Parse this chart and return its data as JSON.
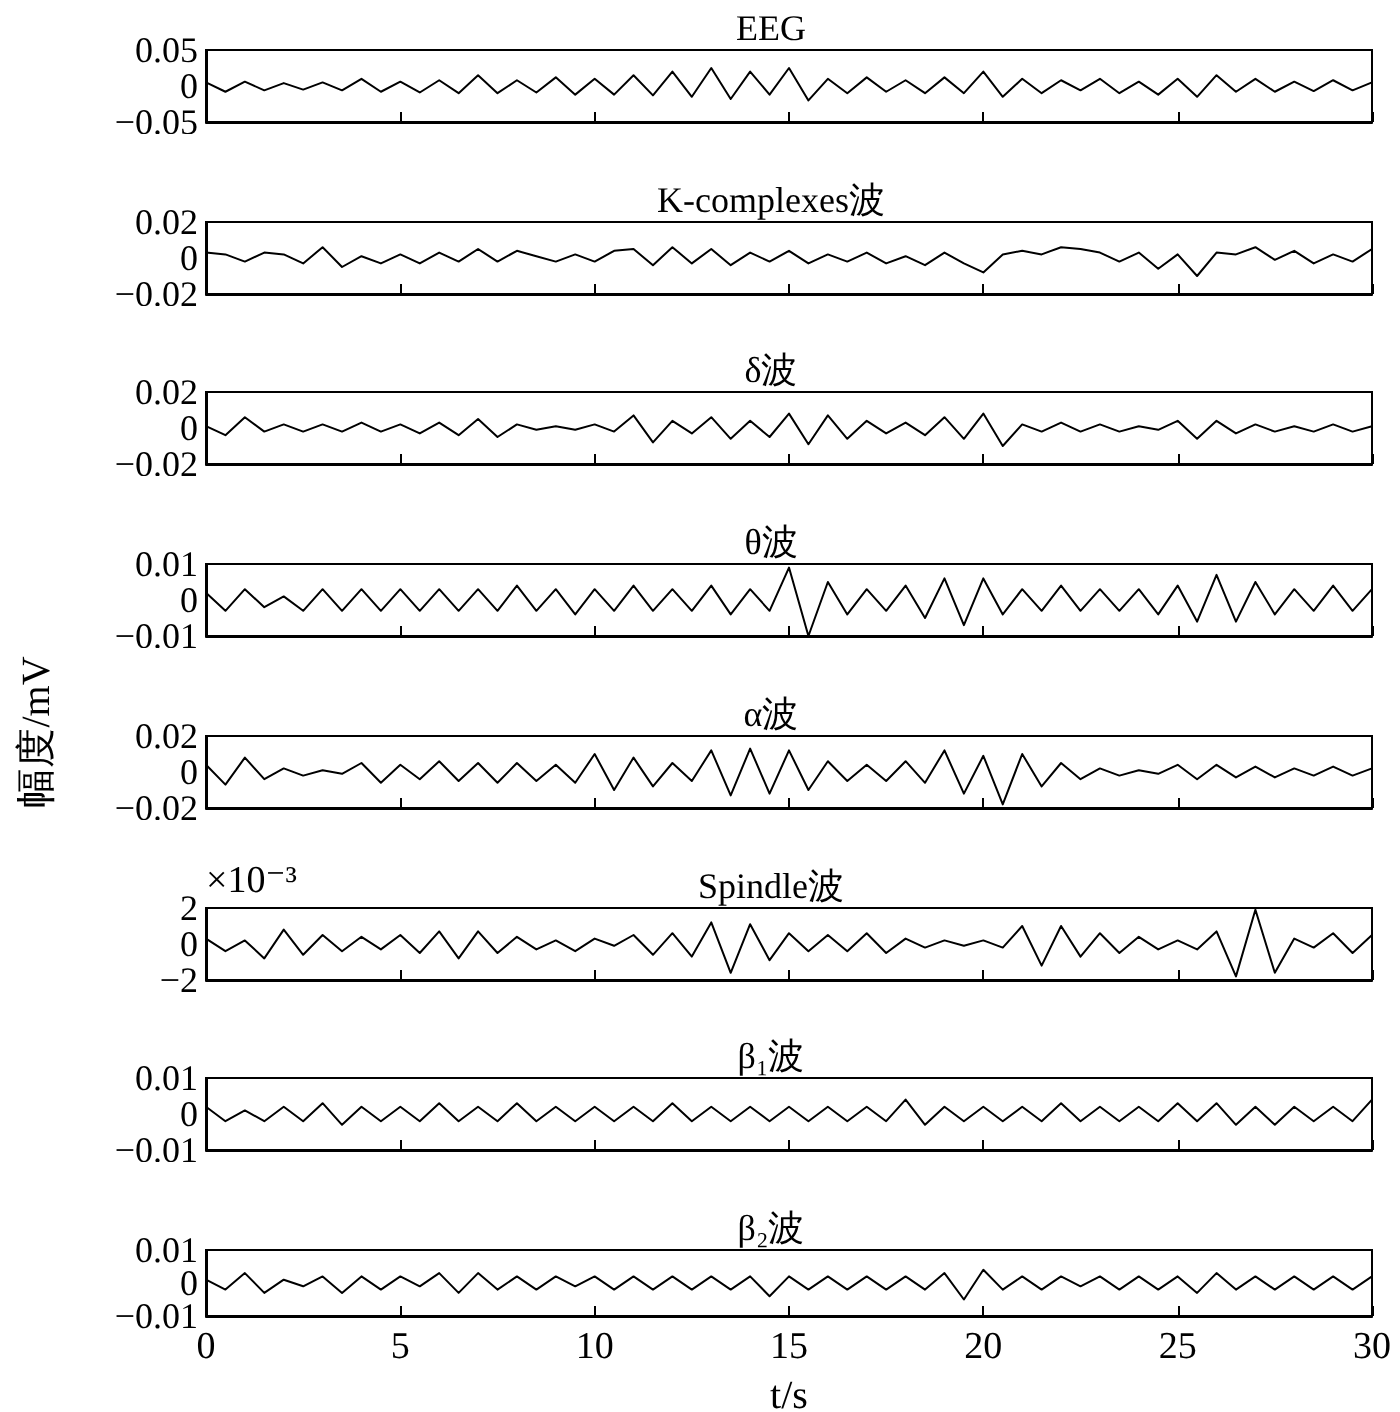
{
  "chart_data": [
    {
      "type": "line",
      "title": "EEG",
      "color": "#000000",
      "xlim": [
        0,
        30
      ],
      "xticks": [
        0,
        5,
        10,
        15,
        20,
        25,
        30
      ],
      "ylim": [
        -0.05,
        0.05
      ],
      "yticks": [
        -0.05,
        0,
        0.05
      ],
      "tick_labels": "y",
      "grid": false,
      "x": [
        0,
        0.5,
        1,
        1.5,
        2,
        2.5,
        3,
        3.5,
        4,
        4.5,
        5,
        5.5,
        6,
        6.5,
        7,
        7.5,
        8,
        8.5,
        9,
        9.5,
        10,
        10.5,
        11,
        11.5,
        12,
        12.5,
        13,
        13.5,
        14,
        14.5,
        15,
        15.5,
        16,
        16.5,
        17,
        17.5,
        18,
        18.5,
        19,
        19.5,
        20,
        20.5,
        21,
        21.5,
        22,
        22.5,
        23,
        23.5,
        24,
        24.5,
        25,
        25.5,
        26,
        26.5,
        27,
        27.5,
        28,
        28.5,
        29,
        29.5,
        30
      ],
      "values": [
        0.005,
        -0.008,
        0.006,
        -0.006,
        0.004,
        -0.005,
        0.005,
        -0.006,
        0.01,
        -0.008,
        0.006,
        -0.009,
        0.008,
        -0.01,
        0.015,
        -0.01,
        0.008,
        -0.009,
        0.012,
        -0.012,
        0.01,
        -0.012,
        0.015,
        -0.013,
        0.02,
        -0.015,
        0.025,
        -0.018,
        0.02,
        -0.012,
        0.025,
        -0.02,
        0.01,
        -0.01,
        0.012,
        -0.008,
        0.008,
        -0.01,
        0.012,
        -0.01,
        0.02,
        -0.015,
        0.01,
        -0.01,
        0.008,
        -0.006,
        0.01,
        -0.01,
        0.006,
        -0.012,
        0.01,
        -0.015,
        0.015,
        -0.008,
        0.01,
        -0.008,
        0.006,
        -0.007,
        0.008,
        -0.006,
        0.005
      ]
    },
    {
      "type": "line",
      "title": "K-complexes波",
      "color": "#000000",
      "xlim": [
        0,
        30
      ],
      "xticks": [
        0,
        5,
        10,
        15,
        20,
        25,
        30
      ],
      "ylim": [
        -0.02,
        0.02
      ],
      "yticks": [
        -0.02,
        0,
        0.02
      ],
      "tick_labels": "y",
      "grid": false,
      "x": [
        0,
        0.5,
        1,
        1.5,
        2,
        2.5,
        3,
        3.5,
        4,
        4.5,
        5,
        5.5,
        6,
        6.5,
        7,
        7.5,
        8,
        8.5,
        9,
        9.5,
        10,
        10.5,
        11,
        11.5,
        12,
        12.5,
        13,
        13.5,
        14,
        14.5,
        15,
        15.5,
        16,
        16.5,
        17,
        17.5,
        18,
        18.5,
        19,
        19.5,
        20,
        20.5,
        21,
        21.5,
        22,
        22.5,
        23,
        23.5,
        24,
        24.5,
        25,
        25.5,
        26,
        26.5,
        27,
        27.5,
        28,
        28.5,
        29,
        29.5,
        30
      ],
      "values": [
        0.003,
        0.002,
        -0.002,
        0.003,
        0.002,
        -0.003,
        0.006,
        -0.005,
        0.001,
        -0.003,
        0.002,
        -0.003,
        0.003,
        -0.002,
        0.005,
        -0.002,
        0.004,
        0.001,
        -0.002,
        0.002,
        -0.002,
        0.004,
        0.005,
        -0.004,
        0.006,
        -0.003,
        0.005,
        -0.004,
        0.003,
        -0.002,
        0.004,
        -0.003,
        0.002,
        -0.002,
        0.003,
        -0.003,
        0.001,
        -0.004,
        0.003,
        -0.003,
        -0.008,
        0.002,
        0.004,
        0.002,
        0.006,
        0.005,
        0.003,
        -0.002,
        0.003,
        -0.006,
        0.002,
        -0.01,
        0.003,
        0.002,
        0.006,
        -0.001,
        0.004,
        -0.003,
        0.002,
        -0.002,
        0.005
      ]
    },
    {
      "type": "line",
      "title": "δ波",
      "color": "#000000",
      "xlim": [
        0,
        30
      ],
      "xticks": [
        0,
        5,
        10,
        15,
        20,
        25,
        30
      ],
      "ylim": [
        -0.02,
        0.02
      ],
      "yticks": [
        -0.02,
        0,
        0.02
      ],
      "tick_labels": "y",
      "grid": false,
      "x": [
        0,
        0.5,
        1,
        1.5,
        2,
        2.5,
        3,
        3.5,
        4,
        4.5,
        5,
        5.5,
        6,
        6.5,
        7,
        7.5,
        8,
        8.5,
        9,
        9.5,
        10,
        10.5,
        11,
        11.5,
        12,
        12.5,
        13,
        13.5,
        14,
        14.5,
        15,
        15.5,
        16,
        16.5,
        17,
        17.5,
        18,
        18.5,
        19,
        19.5,
        20,
        20.5,
        21,
        21.5,
        22,
        22.5,
        23,
        23.5,
        24,
        24.5,
        25,
        25.5,
        26,
        26.5,
        27,
        27.5,
        28,
        28.5,
        29,
        29.5,
        30
      ],
      "values": [
        0.001,
        -0.004,
        0.006,
        -0.002,
        0.002,
        -0.002,
        0.002,
        -0.002,
        0.003,
        -0.002,
        0.002,
        -0.003,
        0.003,
        -0.004,
        0.005,
        -0.005,
        0.002,
        -0.001,
        0.001,
        -0.001,
        0.002,
        -0.002,
        0.007,
        -0.008,
        0.004,
        -0.003,
        0.006,
        -0.006,
        0.004,
        -0.005,
        0.008,
        -0.009,
        0.007,
        -0.006,
        0.004,
        -0.003,
        0.003,
        -0.004,
        0.006,
        -0.006,
        0.008,
        -0.01,
        0.002,
        -0.002,
        0.003,
        -0.002,
        0.002,
        -0.002,
        0.001,
        -0.001,
        0.004,
        -0.006,
        0.004,
        -0.003,
        0.002,
        -0.002,
        0.001,
        -0.002,
        0.002,
        -0.002,
        0.001
      ]
    },
    {
      "type": "line",
      "title": "θ波",
      "color": "#000000",
      "xlim": [
        0,
        30
      ],
      "xticks": [
        0,
        5,
        10,
        15,
        20,
        25,
        30
      ],
      "ylim": [
        -0.01,
        0.01
      ],
      "yticks": [
        -0.01,
        0,
        0.01
      ],
      "tick_labels": "y",
      "grid": false,
      "x": [
        0,
        0.5,
        1,
        1.5,
        2,
        2.5,
        3,
        3.5,
        4,
        4.5,
        5,
        5.5,
        6,
        6.5,
        7,
        7.5,
        8,
        8.5,
        9,
        9.5,
        10,
        10.5,
        11,
        11.5,
        12,
        12.5,
        13,
        13.5,
        14,
        14.5,
        15,
        15.5,
        16,
        16.5,
        17,
        17.5,
        18,
        18.5,
        19,
        19.5,
        20,
        20.5,
        21,
        21.5,
        22,
        22.5,
        23,
        23.5,
        24,
        24.5,
        25,
        25.5,
        26,
        26.5,
        27,
        27.5,
        28,
        28.5,
        29,
        29.5,
        30
      ],
      "values": [
        0.002,
        -0.003,
        0.003,
        -0.002,
        0.001,
        -0.003,
        0.003,
        -0.003,
        0.003,
        -0.003,
        0.003,
        -0.003,
        0.003,
        -0.003,
        0.003,
        -0.003,
        0.004,
        -0.003,
        0.003,
        -0.004,
        0.003,
        -0.003,
        0.004,
        -0.003,
        0.003,
        -0.003,
        0.004,
        -0.004,
        0.003,
        -0.003,
        0.009,
        -0.01,
        0.005,
        -0.004,
        0.003,
        -0.003,
        0.004,
        -0.005,
        0.006,
        -0.007,
        0.006,
        -0.004,
        0.003,
        -0.003,
        0.004,
        -0.003,
        0.003,
        -0.003,
        0.003,
        -0.004,
        0.004,
        -0.006,
        0.007,
        -0.006,
        0.005,
        -0.004,
        0.003,
        -0.003,
        0.004,
        -0.003,
        0.003
      ]
    },
    {
      "type": "line",
      "title": "α波",
      "ylabel": "幅度/mV",
      "color": "#000000",
      "xlim": [
        0,
        30
      ],
      "xticks": [
        0,
        5,
        10,
        15,
        20,
        25,
        30
      ],
      "ylim": [
        -0.02,
        0.02
      ],
      "yticks": [
        -0.02,
        0,
        0.02
      ],
      "tick_labels": "y",
      "grid": false,
      "x": [
        0,
        0.5,
        1,
        1.5,
        2,
        2.5,
        3,
        3.5,
        4,
        4.5,
        5,
        5.5,
        6,
        6.5,
        7,
        7.5,
        8,
        8.5,
        9,
        9.5,
        10,
        10.5,
        11,
        11.5,
        12,
        12.5,
        13,
        13.5,
        14,
        14.5,
        15,
        15.5,
        16,
        16.5,
        17,
        17.5,
        18,
        18.5,
        19,
        19.5,
        20,
        20.5,
        21,
        21.5,
        22,
        22.5,
        23,
        23.5,
        24,
        24.5,
        25,
        25.5,
        26,
        26.5,
        27,
        27.5,
        28,
        28.5,
        29,
        29.5,
        30
      ],
      "values": [
        0.004,
        -0.007,
        0.008,
        -0.004,
        0.002,
        -0.002,
        0.001,
        -0.001,
        0.005,
        -0.006,
        0.004,
        -0.004,
        0.006,
        -0.005,
        0.005,
        -0.006,
        0.005,
        -0.005,
        0.004,
        -0.006,
        0.01,
        -0.01,
        0.008,
        -0.008,
        0.005,
        -0.005,
        0.012,
        -0.013,
        0.013,
        -0.012,
        0.012,
        -0.01,
        0.006,
        -0.005,
        0.004,
        -0.005,
        0.006,
        -0.006,
        0.012,
        -0.012,
        0.009,
        -0.018,
        0.01,
        -0.008,
        0.005,
        -0.004,
        0.002,
        -0.002,
        0.001,
        -0.001,
        0.004,
        -0.004,
        0.004,
        -0.003,
        0.003,
        -0.003,
        0.002,
        -0.002,
        0.003,
        -0.002,
        0.002
      ]
    },
    {
      "type": "line",
      "title": "Spindle波",
      "annotations": [
        "×10⁻³"
      ],
      "color": "#000000",
      "xlim": [
        0,
        30
      ],
      "xticks": [
        0,
        5,
        10,
        15,
        20,
        25,
        30
      ],
      "ylim": [
        -2,
        2
      ],
      "yticks": [
        -2,
        0,
        2
      ],
      "tick_labels": "y",
      "grid": false,
      "x": [
        0,
        0.5,
        1,
        1.5,
        2,
        2.5,
        3,
        3.5,
        4,
        4.5,
        5,
        5.5,
        6,
        6.5,
        7,
        7.5,
        8,
        8.5,
        9,
        9.5,
        10,
        10.5,
        11,
        11.5,
        12,
        12.5,
        13,
        13.5,
        14,
        14.5,
        15,
        15.5,
        16,
        16.5,
        17,
        17.5,
        18,
        18.5,
        19,
        19.5,
        20,
        20.5,
        21,
        21.5,
        22,
        22.5,
        23,
        23.5,
        24,
        24.5,
        25,
        25.5,
        26,
        26.5,
        27,
        27.5,
        28,
        28.5,
        29,
        29.5,
        30
      ],
      "values": [
        0.3,
        -0.4,
        0.2,
        -0.8,
        0.8,
        -0.6,
        0.5,
        -0.4,
        0.4,
        -0.3,
        0.5,
        -0.5,
        0.7,
        -0.8,
        0.7,
        -0.5,
        0.4,
        -0.3,
        0.2,
        -0.4,
        0.3,
        -0.1,
        0.5,
        -0.6,
        0.6,
        -0.7,
        1.2,
        -1.6,
        1.1,
        -0.9,
        0.6,
        -0.4,
        0.5,
        -0.4,
        0.6,
        -0.5,
        0.3,
        -0.2,
        0.2,
        -0.1,
        0.2,
        -0.2,
        1.0,
        -1.2,
        1.0,
        -0.7,
        0.6,
        -0.5,
        0.4,
        -0.3,
        0.2,
        -0.3,
        0.7,
        -1.8,
        1.9,
        -1.6,
        0.3,
        -0.2,
        0.6,
        -0.5,
        0.5
      ]
    },
    {
      "type": "line",
      "title": "β₁波",
      "color": "#000000",
      "xlim": [
        0,
        30
      ],
      "xticks": [
        0,
        5,
        10,
        15,
        20,
        25,
        30
      ],
      "ylim": [
        -0.01,
        0.01
      ],
      "yticks": [
        -0.01,
        0,
        0.01
      ],
      "tick_labels": "y",
      "grid": false,
      "x": [
        0,
        0.5,
        1,
        1.5,
        2,
        2.5,
        3,
        3.5,
        4,
        4.5,
        5,
        5.5,
        6,
        6.5,
        7,
        7.5,
        8,
        8.5,
        9,
        9.5,
        10,
        10.5,
        11,
        11.5,
        12,
        12.5,
        13,
        13.5,
        14,
        14.5,
        15,
        15.5,
        16,
        16.5,
        17,
        17.5,
        18,
        18.5,
        19,
        19.5,
        20,
        20.5,
        21,
        21.5,
        22,
        22.5,
        23,
        23.5,
        24,
        24.5,
        25,
        25.5,
        26,
        26.5,
        27,
        27.5,
        28,
        28.5,
        29,
        29.5,
        30
      ],
      "values": [
        0.002,
        -0.002,
        0.001,
        -0.002,
        0.002,
        -0.002,
        0.003,
        -0.003,
        0.002,
        -0.002,
        0.002,
        -0.002,
        0.003,
        -0.002,
        0.002,
        -0.002,
        0.003,
        -0.002,
        0.002,
        -0.002,
        0.002,
        -0.002,
        0.002,
        -0.002,
        0.003,
        -0.002,
        0.002,
        -0.002,
        0.002,
        -0.002,
        0.002,
        -0.002,
        0.002,
        -0.002,
        0.002,
        -0.002,
        0.004,
        -0.003,
        0.002,
        -0.002,
        0.002,
        -0.002,
        0.002,
        -0.002,
        0.003,
        -0.002,
        0.002,
        -0.002,
        0.002,
        -0.002,
        0.003,
        -0.002,
        0.003,
        -0.003,
        0.002,
        -0.003,
        0.002,
        -0.002,
        0.002,
        -0.002,
        0.004
      ]
    },
    {
      "type": "line",
      "title": "β₂波",
      "xlabel": "t/s",
      "color": "#000000",
      "xlim": [
        0,
        30
      ],
      "xticks": [
        0,
        5,
        10,
        15,
        20,
        25,
        30
      ],
      "ylim": [
        -0.01,
        0.01
      ],
      "yticks": [
        -0.01,
        0,
        0.01
      ],
      "grid": false,
      "x": [
        0,
        0.5,
        1,
        1.5,
        2,
        2.5,
        3,
        3.5,
        4,
        4.5,
        5,
        5.5,
        6,
        6.5,
        7,
        7.5,
        8,
        8.5,
        9,
        9.5,
        10,
        10.5,
        11,
        11.5,
        12,
        12.5,
        13,
        13.5,
        14,
        14.5,
        15,
        15.5,
        16,
        16.5,
        17,
        17.5,
        18,
        18.5,
        19,
        19.5,
        20,
        20.5,
        21,
        21.5,
        22,
        22.5,
        23,
        23.5,
        24,
        24.5,
        25,
        25.5,
        26,
        26.5,
        27,
        27.5,
        28,
        28.5,
        29,
        29.5,
        30
      ],
      "values": [
        0.001,
        -0.002,
        0.003,
        -0.003,
        0.001,
        -0.001,
        0.002,
        -0.003,
        0.002,
        -0.002,
        0.002,
        -0.001,
        0.003,
        -0.003,
        0.003,
        -0.002,
        0.002,
        -0.002,
        0.002,
        -0.001,
        0.002,
        -0.002,
        0.002,
        -0.002,
        0.002,
        -0.002,
        0.002,
        -0.002,
        0.002,
        -0.004,
        0.002,
        -0.002,
        0.002,
        -0.002,
        0.002,
        -0.002,
        0.002,
        -0.002,
        0.003,
        -0.005,
        0.004,
        -0.002,
        0.002,
        -0.002,
        0.002,
        -0.001,
        0.002,
        -0.002,
        0.002,
        -0.002,
        0.002,
        -0.003,
        0.003,
        -0.002,
        0.002,
        -0.002,
        0.002,
        -0.002,
        0.002,
        -0.002,
        0.002
      ]
    }
  ]
}
